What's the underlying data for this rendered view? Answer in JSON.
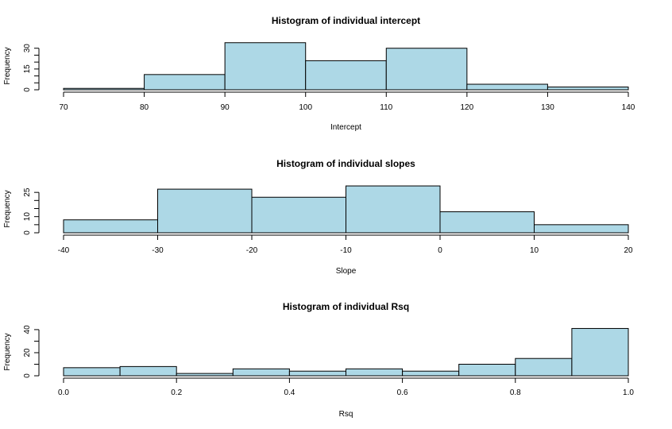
{
  "chart_data": [
    {
      "type": "bar",
      "title": "Histogram of individual intercept",
      "xlabel": "Intercept",
      "ylabel": "Frequency",
      "bar_color": "#add8e6",
      "bin_edges": [
        70,
        80,
        90,
        100,
        110,
        120,
        130,
        140
      ],
      "values": [
        1,
        11,
        34,
        21,
        30,
        4,
        2
      ],
      "xlim": [
        70,
        140
      ],
      "ylim": [
        0,
        35
      ],
      "x_ticks": [
        70,
        80,
        90,
        100,
        110,
        120,
        130,
        140
      ],
      "x_tick_labels": [
        "70",
        "80",
        "90",
        "100",
        "110",
        "120",
        "130",
        "140"
      ],
      "y_ticks": [
        0,
        5,
        10,
        15,
        20,
        25,
        30
      ],
      "y_tick_labels": [
        "0",
        "",
        "",
        "15",
        "",
        "",
        "30"
      ]
    },
    {
      "type": "bar",
      "title": "Histogram of individual slopes",
      "xlabel": "Slope",
      "ylabel": "Frequency",
      "bar_color": "#add8e6",
      "bin_edges": [
        -40,
        -30,
        -20,
        -10,
        0,
        10,
        20
      ],
      "values": [
        8,
        27,
        22,
        29,
        13,
        5
      ],
      "xlim": [
        -40,
        20
      ],
      "ylim": [
        0,
        30
      ],
      "x_ticks": [
        -40,
        -30,
        -20,
        -10,
        0,
        10,
        20
      ],
      "x_tick_labels": [
        "-40",
        "-30",
        "-20",
        "-10",
        "0",
        "10",
        "20"
      ],
      "y_ticks": [
        0,
        5,
        10,
        15,
        20,
        25
      ],
      "y_tick_labels": [
        "0",
        "",
        "10",
        "",
        "",
        "25"
      ]
    },
    {
      "type": "bar",
      "title": "Histogram of individual Rsq",
      "xlabel": "Rsq",
      "ylabel": "Frequency",
      "bar_color": "#add8e6",
      "bin_edges": [
        0.0,
        0.1,
        0.2,
        0.3,
        0.4,
        0.5,
        0.6,
        0.7,
        0.8,
        0.9,
        1.0
      ],
      "values": [
        7,
        8,
        2,
        6,
        4,
        6,
        4,
        10,
        15,
        41
      ],
      "xlim": [
        0,
        1
      ],
      "ylim": [
        0,
        42
      ],
      "x_ticks": [
        0,
        0.2,
        0.4,
        0.6,
        0.8,
        1.0
      ],
      "x_tick_labels": [
        "0.0",
        "0.2",
        "0.4",
        "0.6",
        "0.8",
        "1.0"
      ],
      "y_ticks": [
        0,
        10,
        20,
        30,
        40
      ],
      "y_tick_labels": [
        "0",
        "",
        "20",
        "",
        "40"
      ]
    }
  ]
}
